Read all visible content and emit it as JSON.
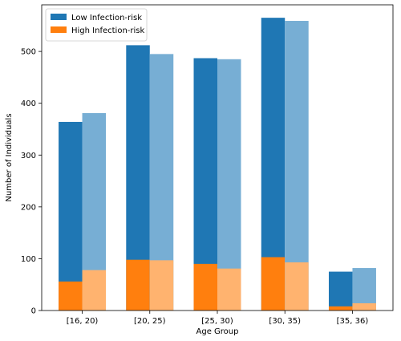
{
  "chart_data": {
    "type": "bar",
    "categories": [
      "[16, 20)",
      "[20, 25)",
      "[25, 30)",
      "[30, 35)",
      "[35, 36)"
    ],
    "xlabel": "Age Group",
    "ylabel": "Number of Individuals",
    "ylim": [
      0,
      590
    ],
    "yticks": [
      0,
      100,
      200,
      300,
      400,
      500
    ],
    "grid": false,
    "legend_position": "top-left",
    "legend": [
      {
        "label": "Low Infection-risk",
        "color": "#1f77b4"
      },
      {
        "label": "High Infection-risk",
        "color": "#ff7f0e"
      }
    ],
    "groups": [
      {
        "total": [
          364,
          512,
          487,
          565,
          75
        ],
        "high_risk": [
          56,
          98,
          90,
          103,
          8
        ],
        "color_total": "#1f77b4",
        "color_high": "#ff7f0e"
      },
      {
        "total": [
          381,
          495,
          485,
          559,
          82
        ],
        "high_risk": [
          78,
          97,
          81,
          93,
          14
        ],
        "color_total": "#77aed4",
        "color_high": "#ffb36f"
      }
    ]
  }
}
